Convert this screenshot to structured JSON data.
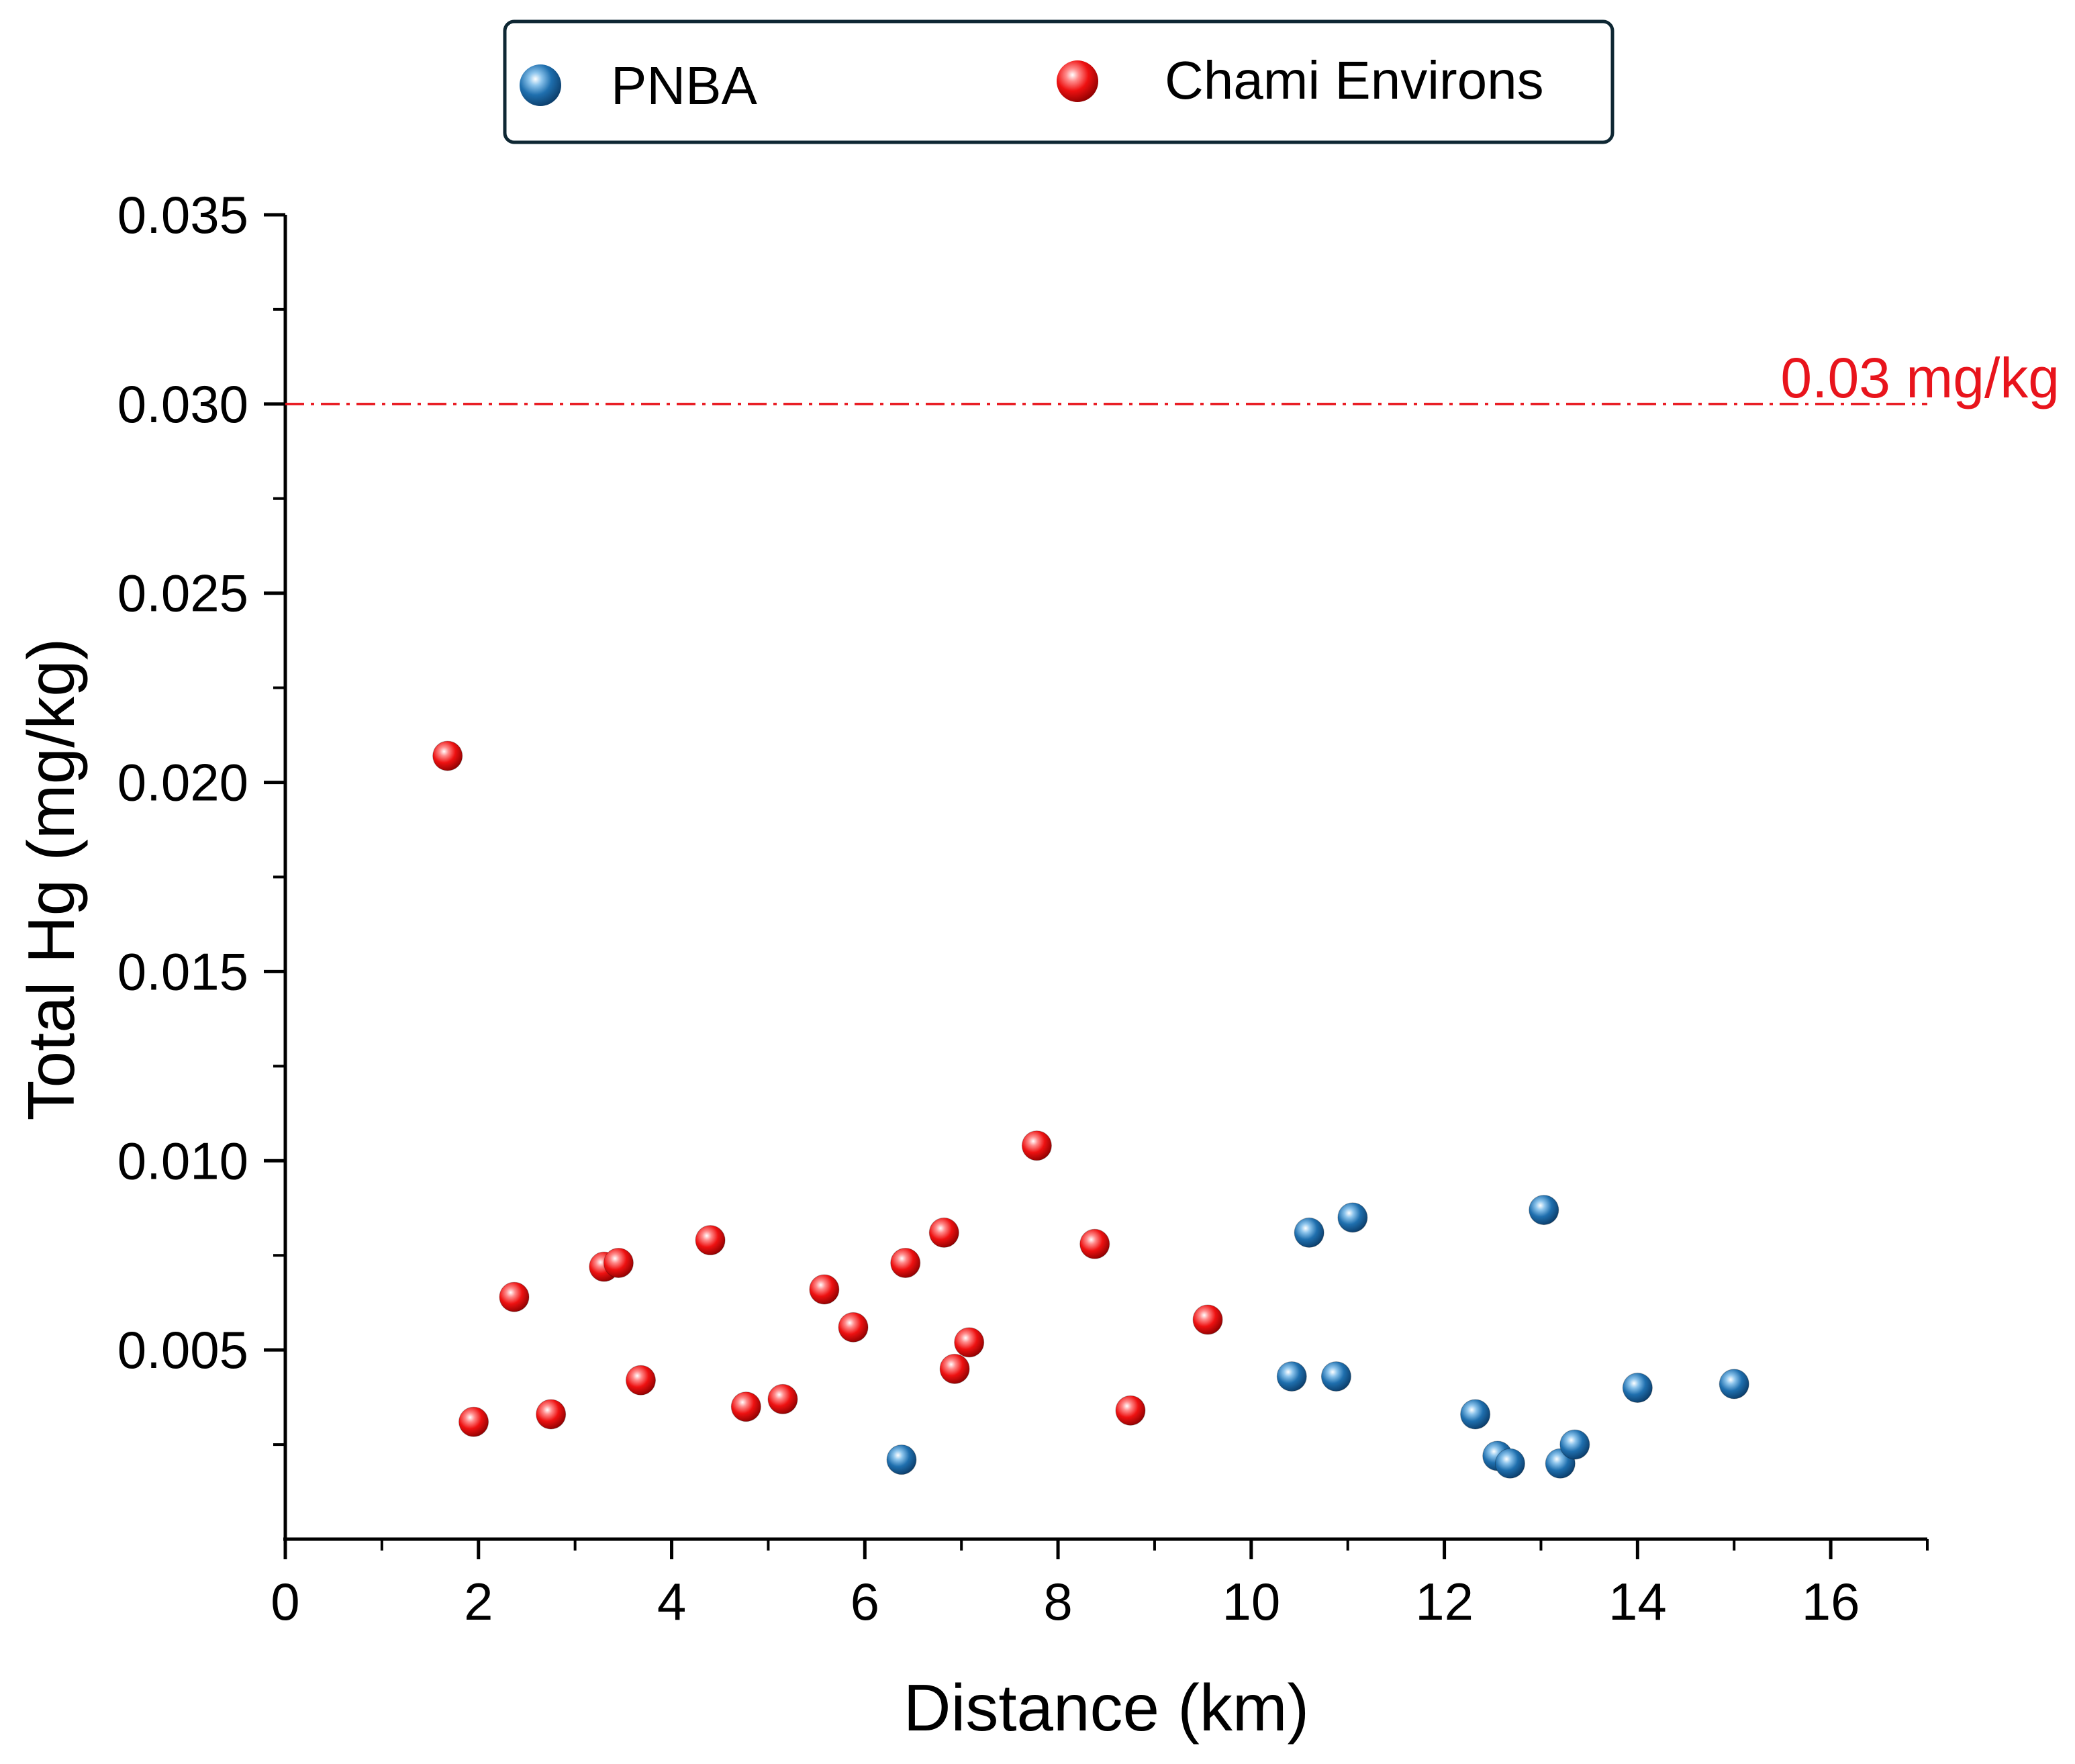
{
  "chart_data": {
    "type": "scatter",
    "title": "",
    "xlabel": "Distance (km)",
    "ylabel": "Total Hg (mg/kg)",
    "xlim": [
      0,
      17
    ],
    "ylim": [
      0,
      0.035
    ],
    "x_ticks": [
      0,
      2,
      4,
      6,
      8,
      10,
      12,
      14,
      16
    ],
    "x_tick_labels": [
      "0",
      "2",
      "4",
      "6",
      "8",
      "10",
      "12",
      "14",
      "16"
    ],
    "y_ticks": [
      0.005,
      0.01,
      0.015,
      0.02,
      0.025,
      0.03,
      0.035
    ],
    "y_tick_labels": [
      "0.005",
      "0.010",
      "0.015",
      "0.020",
      "0.025",
      "0.030",
      "0.035"
    ],
    "grid": false,
    "legend_position": "top-center",
    "reference_line": {
      "y": 0.03,
      "label": "0.03 mg/kg",
      "color": "#e8141c",
      "style": "dash-dot"
    },
    "series": [
      {
        "name": "PNBA",
        "color": "#1f6fae",
        "points": [
          {
            "x": 6.38,
            "y": 0.0021
          },
          {
            "x": 10.42,
            "y": 0.0043
          },
          {
            "x": 10.6,
            "y": 0.0081
          },
          {
            "x": 10.88,
            "y": 0.0043
          },
          {
            "x": 11.05,
            "y": 0.0085
          },
          {
            "x": 12.32,
            "y": 0.0033
          },
          {
            "x": 12.55,
            "y": 0.0022
          },
          {
            "x": 12.68,
            "y": 0.002
          },
          {
            "x": 13.03,
            "y": 0.0087
          },
          {
            "x": 13.2,
            "y": 0.002
          },
          {
            "x": 13.35,
            "y": 0.0025
          },
          {
            "x": 14.0,
            "y": 0.004
          },
          {
            "x": 15.0,
            "y": 0.0041
          }
        ]
      },
      {
        "name": "Chami Environs",
        "color": "#ee1111",
        "points": [
          {
            "x": 1.68,
            "y": 0.0207
          },
          {
            "x": 1.95,
            "y": 0.0031
          },
          {
            "x": 2.37,
            "y": 0.0064
          },
          {
            "x": 2.75,
            "y": 0.0033
          },
          {
            "x": 3.3,
            "y": 0.0072
          },
          {
            "x": 3.45,
            "y": 0.0073
          },
          {
            "x": 3.68,
            "y": 0.0042
          },
          {
            "x": 4.4,
            "y": 0.0079
          },
          {
            "x": 4.77,
            "y": 0.0035
          },
          {
            "x": 5.15,
            "y": 0.0037
          },
          {
            "x": 5.58,
            "y": 0.0066
          },
          {
            "x": 5.88,
            "y": 0.0056
          },
          {
            "x": 6.42,
            "y": 0.0073
          },
          {
            "x": 6.82,
            "y": 0.0081
          },
          {
            "x": 6.93,
            "y": 0.0045
          },
          {
            "x": 7.08,
            "y": 0.0052
          },
          {
            "x": 7.78,
            "y": 0.0104
          },
          {
            "x": 8.38,
            "y": 0.0078
          },
          {
            "x": 8.75,
            "y": 0.0034
          },
          {
            "x": 9.55,
            "y": 0.0058
          }
        ]
      }
    ]
  }
}
